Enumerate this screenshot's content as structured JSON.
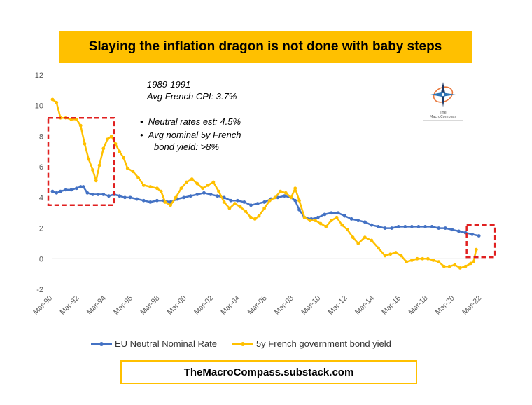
{
  "title": "Slaying the inflation dragon is not done with baby steps",
  "annotation": {
    "period": "1989-1991",
    "avg_cpi": "Avg French CPI: 3.7%",
    "bullet1": "Neutral rates est: 4.5%",
    "bullet2_line1": "Avg nominal 5y French",
    "bullet2_line2": "bond yield: >8%"
  },
  "footer": "TheMacroCompass.substack.com",
  "logo": {
    "line1": "The",
    "line2": "MacroCompass"
  },
  "colors": {
    "eu": "#4472C4",
    "fr": "#FFC000",
    "title_bg": "#FFC000",
    "highlight": "#E02020"
  },
  "chart_data": {
    "type": "line",
    "ylim": [
      -2,
      12
    ],
    "yticks": [
      -2,
      0,
      2,
      4,
      6,
      8,
      10,
      12
    ],
    "xlim": [
      1990.2,
      2022.2
    ],
    "x_ticks": [
      {
        "x": 1990.2,
        "label": "Mar-90"
      },
      {
        "x": 1992.2,
        "label": "Mar-92"
      },
      {
        "x": 1994.2,
        "label": "Mar-94"
      },
      {
        "x": 1996.2,
        "label": "Mar-96"
      },
      {
        "x": 1998.2,
        "label": "Mar-98"
      },
      {
        "x": 2000.2,
        "label": "Mar-00"
      },
      {
        "x": 2002.2,
        "label": "Mar-02"
      },
      {
        "x": 2004.2,
        "label": "Mar-04"
      },
      {
        "x": 2006.2,
        "label": "Mar-06"
      },
      {
        "x": 2008.2,
        "label": "Mar-08"
      },
      {
        "x": 2010.2,
        "label": "Mar-10"
      },
      {
        "x": 2012.2,
        "label": "Mar-12"
      },
      {
        "x": 2014.2,
        "label": "Mar-14"
      },
      {
        "x": 2016.2,
        "label": "Mar-16"
      },
      {
        "x": 2018.2,
        "label": "Mar-18"
      },
      {
        "x": 2020.2,
        "label": "Mar-20"
      },
      {
        "x": 2022.2,
        "label": "Mar-22"
      }
    ],
    "series": [
      {
        "name": "EU Neutral Nominal Rate",
        "points": [
          [
            1990.2,
            4.4
          ],
          [
            1990.5,
            4.3
          ],
          [
            1990.8,
            4.4
          ],
          [
            1991.2,
            4.5
          ],
          [
            1991.6,
            4.5
          ],
          [
            1992.0,
            4.6
          ],
          [
            1992.3,
            4.7
          ],
          [
            1992.5,
            4.7
          ],
          [
            1992.8,
            4.3
          ],
          [
            1993.2,
            4.2
          ],
          [
            1993.6,
            4.2
          ],
          [
            1994.0,
            4.2
          ],
          [
            1994.4,
            4.1
          ],
          [
            1994.8,
            4.2
          ],
          [
            1995.2,
            4.1
          ],
          [
            1995.6,
            4.0
          ],
          [
            1996.0,
            4.0
          ],
          [
            1996.5,
            3.9
          ],
          [
            1997.0,
            3.8
          ],
          [
            1997.5,
            3.7
          ],
          [
            1998.0,
            3.8
          ],
          [
            1998.5,
            3.8
          ],
          [
            1999.0,
            3.7
          ],
          [
            1999.5,
            3.9
          ],
          [
            2000.0,
            4.0
          ],
          [
            2000.5,
            4.1
          ],
          [
            2001.0,
            4.2
          ],
          [
            2001.5,
            4.3
          ],
          [
            2002.0,
            4.2
          ],
          [
            2002.5,
            4.1
          ],
          [
            2003.0,
            4.0
          ],
          [
            2003.5,
            3.8
          ],
          [
            2004.0,
            3.8
          ],
          [
            2004.5,
            3.7
          ],
          [
            2005.0,
            3.5
          ],
          [
            2005.5,
            3.6
          ],
          [
            2006.0,
            3.7
          ],
          [
            2006.5,
            3.9
          ],
          [
            2007.0,
            4.0
          ],
          [
            2007.5,
            4.1
          ],
          [
            2008.0,
            4.0
          ],
          [
            2008.3,
            3.8
          ],
          [
            2008.6,
            3.2
          ],
          [
            2009.0,
            2.7
          ],
          [
            2009.5,
            2.6
          ],
          [
            2010.0,
            2.7
          ],
          [
            2010.5,
            2.9
          ],
          [
            2011.0,
            3.0
          ],
          [
            2011.5,
            3.0
          ],
          [
            2012.0,
            2.8
          ],
          [
            2012.5,
            2.6
          ],
          [
            2013.0,
            2.5
          ],
          [
            2013.5,
            2.4
          ],
          [
            2014.0,
            2.2
          ],
          [
            2014.5,
            2.1
          ],
          [
            2015.0,
            2.0
          ],
          [
            2015.5,
            2.0
          ],
          [
            2016.0,
            2.1
          ],
          [
            2016.5,
            2.1
          ],
          [
            2017.0,
            2.1
          ],
          [
            2017.5,
            2.1
          ],
          [
            2018.0,
            2.1
          ],
          [
            2018.5,
            2.1
          ],
          [
            2019.0,
            2.0
          ],
          [
            2019.5,
            2.0
          ],
          [
            2020.0,
            1.9
          ],
          [
            2020.5,
            1.8
          ],
          [
            2021.0,
            1.7
          ],
          [
            2021.5,
            1.6
          ],
          [
            2022.0,
            1.5
          ]
        ]
      },
      {
        "name": "5y French government bond yield",
        "points": [
          [
            1990.2,
            10.4
          ],
          [
            1990.5,
            10.2
          ],
          [
            1990.8,
            9.2
          ],
          [
            1991.2,
            9.2
          ],
          [
            1991.6,
            9.1
          ],
          [
            1992.0,
            9.1
          ],
          [
            1992.3,
            8.7
          ],
          [
            1992.6,
            7.5
          ],
          [
            1992.9,
            6.5
          ],
          [
            1993.2,
            5.8
          ],
          [
            1993.45,
            5.1
          ],
          [
            1993.7,
            6.1
          ],
          [
            1994.0,
            7.2
          ],
          [
            1994.3,
            7.8
          ],
          [
            1994.6,
            8.0
          ],
          [
            1994.9,
            7.5
          ],
          [
            1995.2,
            7.0
          ],
          [
            1995.5,
            6.6
          ],
          [
            1995.8,
            5.9
          ],
          [
            1996.2,
            5.7
          ],
          [
            1996.6,
            5.3
          ],
          [
            1997.0,
            4.8
          ],
          [
            1997.5,
            4.7
          ],
          [
            1998.0,
            4.6
          ],
          [
            1998.3,
            4.4
          ],
          [
            1998.6,
            3.7
          ],
          [
            1999.0,
            3.5
          ],
          [
            1999.4,
            4.0
          ],
          [
            1999.8,
            4.6
          ],
          [
            2000.2,
            5.0
          ],
          [
            2000.6,
            5.2
          ],
          [
            2001.0,
            4.9
          ],
          [
            2001.4,
            4.6
          ],
          [
            2001.8,
            4.8
          ],
          [
            2002.2,
            5.0
          ],
          [
            2002.6,
            4.4
          ],
          [
            2003.0,
            3.7
          ],
          [
            2003.4,
            3.3
          ],
          [
            2003.8,
            3.6
          ],
          [
            2004.2,
            3.4
          ],
          [
            2004.6,
            3.1
          ],
          [
            2005.0,
            2.7
          ],
          [
            2005.3,
            2.6
          ],
          [
            2005.6,
            2.8
          ],
          [
            2006.0,
            3.3
          ],
          [
            2006.4,
            3.8
          ],
          [
            2006.8,
            4.0
          ],
          [
            2007.2,
            4.4
          ],
          [
            2007.6,
            4.3
          ],
          [
            2008.0,
            4.0
          ],
          [
            2008.3,
            4.6
          ],
          [
            2008.6,
            3.8
          ],
          [
            2009.0,
            2.7
          ],
          [
            2009.4,
            2.5
          ],
          [
            2009.8,
            2.5
          ],
          [
            2010.2,
            2.3
          ],
          [
            2010.6,
            2.1
          ],
          [
            2011.0,
            2.5
          ],
          [
            2011.4,
            2.7
          ],
          [
            2011.8,
            2.2
          ],
          [
            2012.2,
            1.9
          ],
          [
            2012.6,
            1.4
          ],
          [
            2013.0,
            1.0
          ],
          [
            2013.5,
            1.4
          ],
          [
            2014.0,
            1.2
          ],
          [
            2014.5,
            0.7
          ],
          [
            2015.0,
            0.2
          ],
          [
            2015.4,
            0.3
          ],
          [
            2015.8,
            0.4
          ],
          [
            2016.2,
            0.2
          ],
          [
            2016.6,
            -0.2
          ],
          [
            2017.0,
            -0.1
          ],
          [
            2017.4,
            0.0
          ],
          [
            2017.8,
            0.0
          ],
          [
            2018.2,
            0.0
          ],
          [
            2018.6,
            -0.1
          ],
          [
            2019.0,
            -0.2
          ],
          [
            2019.4,
            -0.5
          ],
          [
            2019.8,
            -0.5
          ],
          [
            2020.2,
            -0.4
          ],
          [
            2020.6,
            -0.6
          ],
          [
            2021.0,
            -0.5
          ],
          [
            2021.4,
            -0.3
          ],
          [
            2021.6,
            -0.2
          ],
          [
            2021.8,
            0.6
          ]
        ]
      }
    ],
    "highlights": [
      {
        "x0": 1990.2,
        "x1": 1994.8,
        "y0": 3.5,
        "y1": 9.2
      },
      {
        "x0": 2021.4,
        "x1": 2023.2,
        "y0": 0.1,
        "y1": 2.2
      }
    ]
  }
}
